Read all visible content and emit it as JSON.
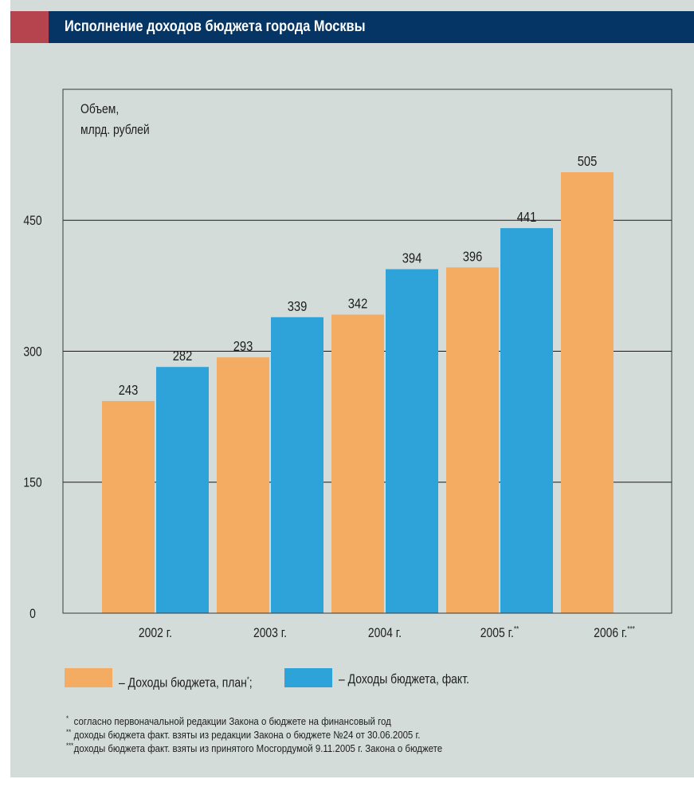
{
  "header": {
    "title": "Исполнение доходов бюджета города Москвы"
  },
  "colors": {
    "plan": "#f4ab62",
    "fact": "#2ea3da",
    "header": "#043564",
    "accent": "#b5444f",
    "background": "#d3dcd9"
  },
  "chart_data": {
    "type": "bar",
    "ylabel": [
      "Объем,",
      "млрд. рублей"
    ],
    "xlabel": "",
    "ylim": [
      0,
      600
    ],
    "yticks": [
      0,
      150,
      300,
      450
    ],
    "grid": true,
    "categories": [
      {
        "label": "2002 г.",
        "mark": ""
      },
      {
        "label": "2003 г.",
        "mark": ""
      },
      {
        "label": "2004 г.",
        "mark": ""
      },
      {
        "label": "2005 г.",
        "mark": "**"
      },
      {
        "label": "2006 г.",
        "mark": "***"
      }
    ],
    "series": [
      {
        "name": "Доходы бюджета, план",
        "values": [
          243,
          293,
          342,
          396,
          505
        ]
      },
      {
        "name": "Доходы бюджета, факт.",
        "values": [
          282,
          339,
          394,
          441,
          null
        ]
      }
    ]
  },
  "legend": {
    "plan_label": "– Доходы бюджета, план",
    "plan_mark": "*",
    "plan_suffix": ";",
    "fact_label": "– Доходы бюджета, факт."
  },
  "footnotes": [
    {
      "mark": "*",
      "text": "согласно первоначальной редакции Закона о бюджете на финансовый год"
    },
    {
      "mark": "**",
      "text": "доходы бюджета факт. взяты из редакции Закона о бюджете №24 от 30.06.2005 г."
    },
    {
      "mark": "***",
      "text": "доходы бюджета факт. взяты из принятого Мосгордумой 9.11.2005 г. Закона о бюджете"
    }
  ]
}
